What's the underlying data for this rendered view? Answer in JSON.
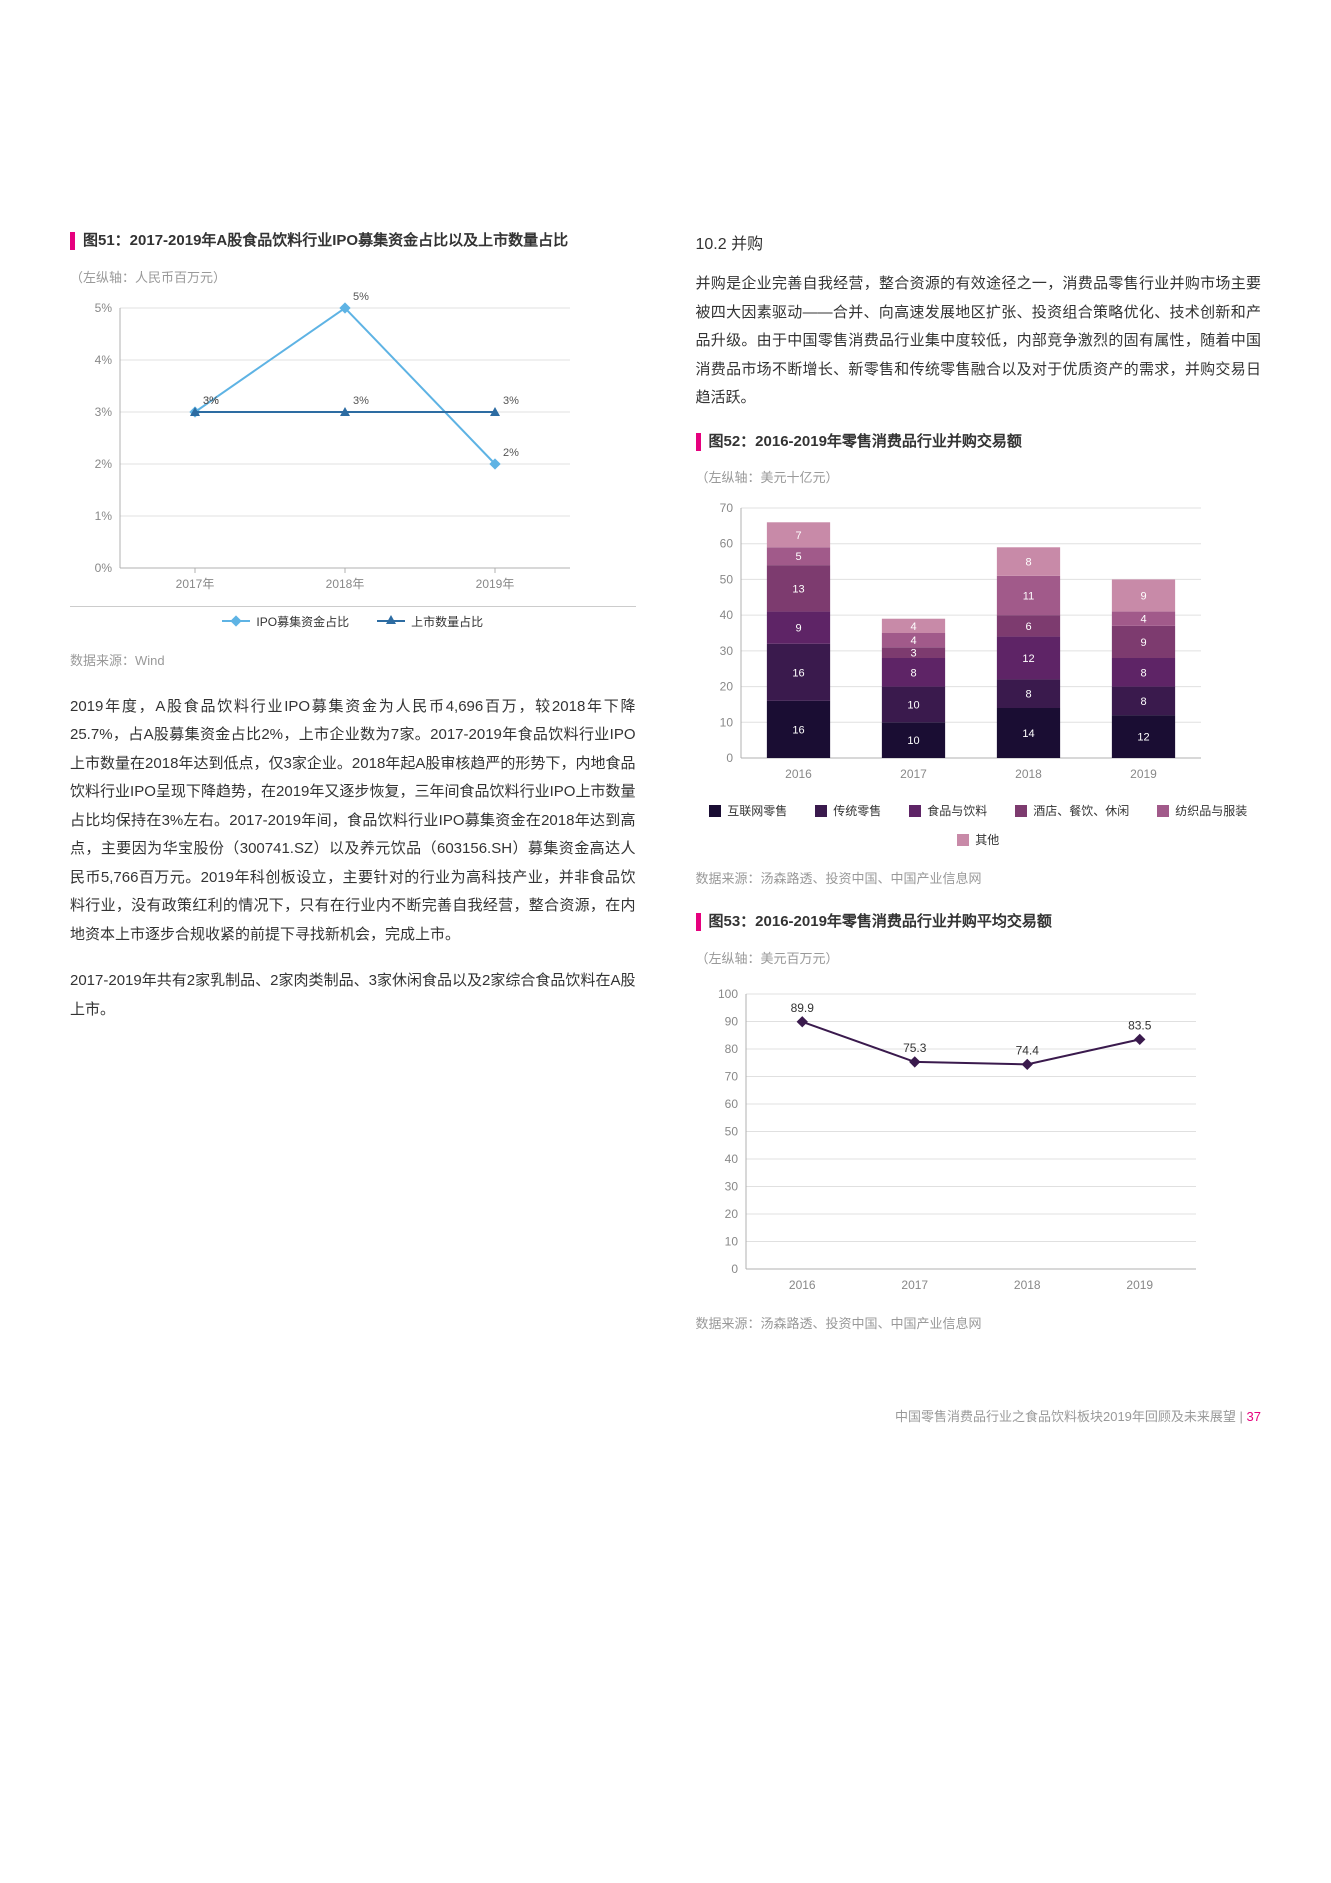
{
  "left": {
    "chart51": {
      "title": "图51：2017-2019年A股食品饮料行业IPO募集资金占比以及上市数量占比",
      "axis_label": "（左纵轴：人民币百万元）",
      "type": "line",
      "ylim": [
        0,
        0.05
      ],
      "yticks": [
        "0%",
        "1%",
        "2%",
        "3%",
        "4%",
        "5%"
      ],
      "categories": [
        "2017年",
        "2018年",
        "2019年"
      ],
      "series": [
        {
          "name": "IPO募集资金占比",
          "color": "#5eb3e4",
          "values": [
            0.03,
            0.05,
            0.02
          ],
          "labels": [
            "3%",
            "5%",
            "2%"
          ],
          "marker": "diamond"
        },
        {
          "name": "上市数量占比",
          "color": "#2d6ca2",
          "values": [
            0.03,
            0.03,
            0.03
          ],
          "labels": [
            "3%",
            "3%",
            "3%"
          ],
          "marker": "triangle"
        }
      ],
      "legend_labels": {
        "s0": "IPO募集资金占比",
        "s1": "上市数量占比"
      },
      "grid_color": "#e0e0e0",
      "axis_color": "#b0b0b0",
      "tick_fontsize": 12,
      "label_fontsize": 11,
      "source": "数据来源：Wind"
    },
    "para1": "2019年度，A股食品饮料行业IPO募集资金为人民币4,696百万，较2018年下降25.7%，占A股募集资金占比2%，上市企业数为7家。2017-2019年食品饮料行业IPO上市数量在2018年达到低点，仅3家企业。2018年起A股审核趋严的形势下，内地食品饮料行业IPO呈现下降趋势，在2019年又逐步恢复，三年间食品饮料行业IPO上市数量占比均保持在3%左右。2017-2019年间，食品饮料行业IPO募集资金在2018年达到高点，主要因为华宝股份（300741.SZ）以及养元饮品（603156.SH）募集资金高达人民币5,766百万元。2019年科创板设立，主要针对的行业为高科技产业，并非食品饮料行业，没有政策红利的情况下，只有在行业内不断完善自我经营，整合资源，在内地资本上市逐步合规收紧的前提下寻找新机会，完成上市。",
    "para2": "2017-2019年共有2家乳制品、2家肉类制品、3家休闲食品以及2家综合食品饮料在A股上市。"
  },
  "right": {
    "heading": "10.2 并购",
    "para1": "并购是企业完善自我经营，整合资源的有效途径之一，消费品零售行业并购市场主要被四大因素驱动——合并、向高速发展地区扩张、投资组合策略优化、技术创新和产品升级。由于中国零售消费品行业集中度较低，内部竞争激烈的固有属性，随着中国消费品市场不断增长、新零售和传统零售融合以及对于优质资产的需求，并购交易日趋活跃。",
    "chart52": {
      "title": "图52：2016-2019年零售消费品行业并购交易额",
      "axis_label": "（左纵轴：美元十亿元）",
      "type": "stacked-bar",
      "ylim": [
        0,
        70
      ],
      "ytick_step": 10,
      "yticks": [
        "0",
        "10",
        "20",
        "30",
        "40",
        "50",
        "60",
        "70"
      ],
      "categories": [
        "2016",
        "2017",
        "2018",
        "2019"
      ],
      "legend": [
        {
          "name": "互联网零售",
          "color": "#1a0d33"
        },
        {
          "name": "传统零售",
          "color": "#3a1a4d"
        },
        {
          "name": "食品与饮料",
          "color": "#5e2466"
        },
        {
          "name": "酒店、餐饮、休闲",
          "color": "#7d3b6f"
        },
        {
          "name": "纺织品与服装",
          "color": "#a15a8a"
        },
        {
          "name": "其他",
          "color": "#c88aa8"
        }
      ],
      "stacks": [
        {
          "values": [
            16,
            16,
            9,
            13,
            5,
            7
          ],
          "labels": [
            "16",
            "16",
            "9",
            "13",
            "5",
            "7"
          ]
        },
        {
          "values": [
            10,
            10,
            8,
            3,
            4,
            4
          ],
          "labels": [
            "10",
            "10",
            "8",
            "3",
            "4",
            "4"
          ]
        },
        {
          "values": [
            14,
            8,
            12,
            6,
            11,
            8
          ],
          "labels": [
            "14",
            "8",
            "12",
            "6",
            "11",
            "8"
          ]
        },
        {
          "values": [
            12,
            8,
            8,
            9,
            4,
            9
          ],
          "labels": [
            "12",
            "8",
            "8",
            "9",
            "4",
            "9"
          ]
        }
      ],
      "bar_width": 0.55,
      "grid_color": "#e0e0e0",
      "axis_color": "#b0b0b0",
      "value_label_color": "#ffffff",
      "tick_fontsize": 12,
      "source": "数据来源：汤森路透、投资中国、中国产业信息网"
    },
    "chart53": {
      "title": "图53：2016-2019年零售消费品行业并购平均交易额",
      "axis_label": "（左纵轴：美元百万元）",
      "type": "line",
      "ylim": [
        0,
        100
      ],
      "ytick_step": 10,
      "yticks": [
        "0",
        "10",
        "20",
        "30",
        "40",
        "50",
        "60",
        "70",
        "80",
        "90",
        "100"
      ],
      "categories": [
        "2016",
        "2017",
        "2018",
        "2019"
      ],
      "series": [
        {
          "name": "平均交易额",
          "color": "#3a1a4d",
          "values": [
            89.9,
            75.3,
            74.4,
            83.5
          ],
          "labels": [
            "89.9",
            "75.3",
            "74.4",
            "83.5"
          ],
          "marker": "diamond"
        }
      ],
      "grid_color": "#e0e0e0",
      "axis_color": "#b0b0b0",
      "tick_fontsize": 12,
      "source": "数据来源：汤森路透、投资中国、中国产业信息网"
    }
  },
  "footer": {
    "text": "中国零售消费品行业之食品饮料板块2019年回顾及未来展望",
    "page": "37"
  }
}
